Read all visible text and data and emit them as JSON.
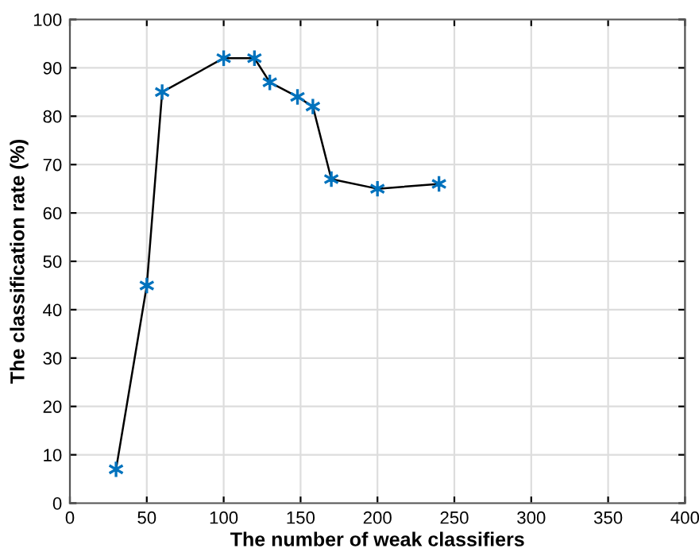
{
  "chart_data": {
    "type": "line",
    "xlabel": "The number of weak classifiers",
    "ylabel": "The classification rate (%)",
    "x": [
      30,
      50,
      60,
      100,
      120,
      130,
      148,
      158,
      170,
      200,
      240
    ],
    "series": [
      {
        "color": "#0072bd",
        "values": [
          7,
          45,
          85,
          92,
          92,
          87,
          84,
          82,
          67,
          65,
          66
        ]
      }
    ],
    "xlim": [
      0,
      400
    ],
    "xticks": [
      0,
      50,
      100,
      150,
      200,
      250,
      300,
      350,
      400
    ],
    "ylim": [
      0,
      100
    ],
    "yticks": [
      0,
      10,
      20,
      30,
      40,
      50,
      60,
      70,
      80,
      90,
      100
    ],
    "grid": true,
    "marker": "cross",
    "line_style": "solid",
    "legend": false
  }
}
